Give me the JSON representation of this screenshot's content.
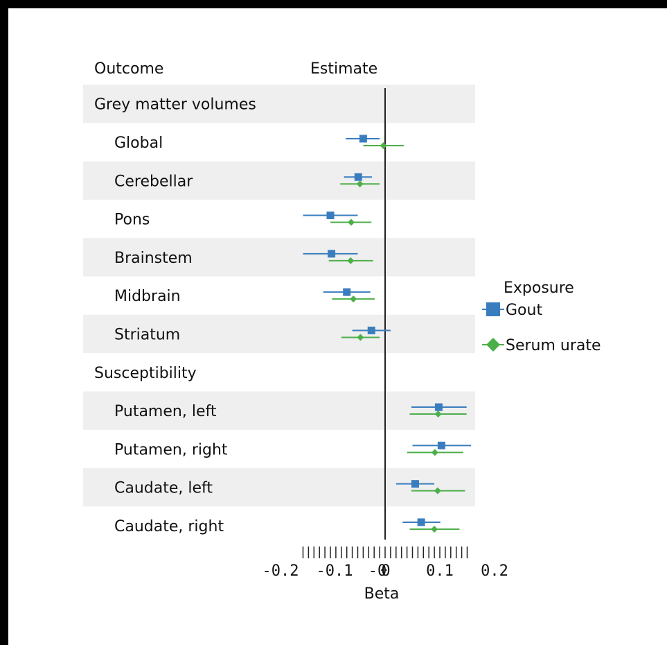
{
  "chart_data": {
    "type": "forest",
    "header": {
      "outcome": "Outcome",
      "estimate": "Estimate"
    },
    "xlabel": "Beta",
    "xlim": [
      -0.2,
      0.2
    ],
    "x_ticks": [
      "-0.2",
      "-0.1",
      "-0",
      "0",
      "0.1",
      "0.2"
    ],
    "x_tick_values": [
      -0.2,
      -0.1,
      -0.0,
      0.0,
      0.1,
      0.2
    ],
    "legend": {
      "title": "Exposure",
      "position": "right"
    },
    "series": [
      {
        "name": "Gout",
        "color": "#3a7dbf",
        "marker": "square"
      },
      {
        "name": "Serum urate",
        "color": "#4daf4a",
        "marker": "diamond"
      }
    ],
    "rows": [
      {
        "label": "Grey matter volumes",
        "kind": "group",
        "shaded": true
      },
      {
        "label": "Global",
        "kind": "item",
        "shaded": false,
        "gout": {
          "est": -0.04,
          "lo": -0.072,
          "hi": -0.01
        },
        "urate": {
          "est": -0.003,
          "lo": -0.04,
          "hi": 0.034
        }
      },
      {
        "label": "Cerebellar",
        "kind": "item",
        "shaded": true,
        "gout": {
          "est": -0.049,
          "lo": -0.075,
          "hi": -0.024
        },
        "urate": {
          "est": -0.046,
          "lo": -0.082,
          "hi": -0.01
        }
      },
      {
        "label": "Pons",
        "kind": "item",
        "shaded": false,
        "gout": {
          "est": -0.1,
          "lo": -0.15,
          "hi": -0.05
        },
        "urate": {
          "est": -0.062,
          "lo": -0.1,
          "hi": -0.025
        }
      },
      {
        "label": "Brainstem",
        "kind": "item",
        "shaded": true,
        "gout": {
          "est": -0.098,
          "lo": -0.15,
          "hi": -0.05
        },
        "urate": {
          "est": -0.063,
          "lo": -0.103,
          "hi": -0.022
        }
      },
      {
        "label": "Midbrain",
        "kind": "item",
        "shaded": false,
        "gout": {
          "est": -0.07,
          "lo": -0.113,
          "hi": -0.027
        },
        "urate": {
          "est": -0.058,
          "lo": -0.097,
          "hi": -0.019
        }
      },
      {
        "label": "Striatum",
        "kind": "item",
        "shaded": true,
        "gout": {
          "est": -0.025,
          "lo": -0.06,
          "hi": 0.01
        },
        "urate": {
          "est": -0.045,
          "lo": -0.08,
          "hi": -0.01
        }
      },
      {
        "label": "Susceptibility",
        "kind": "group",
        "shaded": false
      },
      {
        "label": "Putamen, left",
        "kind": "item",
        "shaded": true,
        "gout": {
          "est": 0.098,
          "lo": 0.048,
          "hi": 0.149
        },
        "urate": {
          "est": 0.097,
          "lo": 0.045,
          "hi": 0.149
        }
      },
      {
        "label": "Putamen, right",
        "kind": "item",
        "shaded": false,
        "gout": {
          "est": 0.103,
          "lo": 0.05,
          "hi": 0.157
        },
        "urate": {
          "est": 0.091,
          "lo": 0.04,
          "hi": 0.143
        }
      },
      {
        "label": "Caudate, left",
        "kind": "item",
        "shaded": true,
        "gout": {
          "est": 0.055,
          "lo": 0.02,
          "hi": 0.09
        },
        "urate": {
          "est": 0.096,
          "lo": 0.048,
          "hi": 0.146
        }
      },
      {
        "label": "Caudate, right",
        "kind": "item",
        "shaded": false,
        "gout": {
          "est": 0.066,
          "lo": 0.032,
          "hi": 0.101
        },
        "urate": {
          "est": 0.09,
          "lo": 0.045,
          "hi": 0.136
        }
      }
    ]
  }
}
